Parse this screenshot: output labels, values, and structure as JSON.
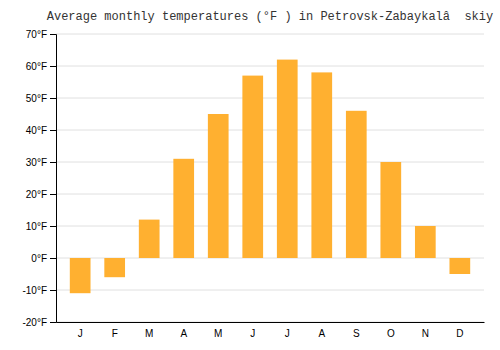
{
  "chart_data": {
    "type": "bar",
    "title": "Average monthly temperatures (°F ) in Petrovsk-Zabaykalâ  skiy",
    "categories": [
      "J",
      "F",
      "M",
      "A",
      "M",
      "J",
      "J",
      "A",
      "S",
      "O",
      "N",
      "D"
    ],
    "values": [
      -11,
      -6,
      12,
      31,
      45,
      57,
      62,
      58,
      46,
      30,
      10,
      -5
    ],
    "color": "#FFB030",
    "ylim": [
      -20,
      70
    ],
    "yticks": [
      {
        "value": -20,
        "label": "-20°F"
      },
      {
        "value": -10,
        "label": "-10°F"
      },
      {
        "value": 0,
        "label": "0°F"
      },
      {
        "value": 10,
        "label": "10°F"
      },
      {
        "value": 20,
        "label": "20°F"
      },
      {
        "value": 30,
        "label": "30°F"
      },
      {
        "value": 40,
        "label": "40°F"
      },
      {
        "value": 50,
        "label": "50°F"
      },
      {
        "value": 60,
        "label": "60°F"
      },
      {
        "value": 70,
        "label": "70°F"
      }
    ],
    "grid": true
  }
}
